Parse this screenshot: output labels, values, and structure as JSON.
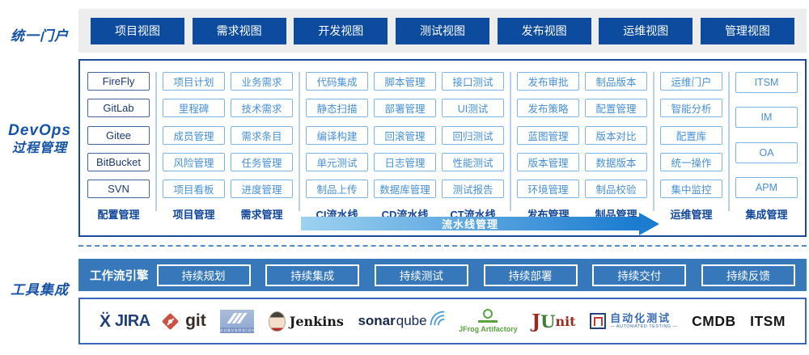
{
  "portal": {
    "label": "统一门户",
    "views": [
      "项目视图",
      "需求视图",
      "开发视图",
      "测试视图",
      "发布视图",
      "运维视图",
      "管理视图"
    ]
  },
  "process": {
    "label_line1": "DevOps",
    "label_line2": "过程管理",
    "pipeline_arrow_label": "流水线管理",
    "columns": [
      {
        "name": "配置管理",
        "style": "dark",
        "divider_after": true,
        "items": [
          "FireFly",
          "GitLab",
          "Gitee",
          "BitBucket",
          "SVN"
        ]
      },
      {
        "name": "项目管理",
        "style": "light",
        "divider_after": false,
        "items": [
          "项目计划",
          "里程碑",
          "成员管理",
          "风险管理",
          "项目看板"
        ]
      },
      {
        "name": "需求管理",
        "style": "light",
        "divider_after": true,
        "items": [
          "业务需求",
          "技术需求",
          "需求条目",
          "任务管理",
          "进度管理"
        ]
      },
      {
        "name": "CI流水线",
        "style": "light",
        "divider_after": false,
        "items": [
          "代码集成",
          "静态扫描",
          "编译构建",
          "单元测试",
          "制品上传"
        ]
      },
      {
        "name": "CD流水线",
        "style": "light",
        "divider_after": false,
        "items": [
          "脚本管理",
          "部署管理",
          "回滚管理",
          "日志管理",
          "数据库管理"
        ]
      },
      {
        "name": "CT流水线",
        "style": "light",
        "divider_after": true,
        "items": [
          "接口测试",
          "UI测试",
          "回归测试",
          "性能测试",
          "测试报告"
        ]
      },
      {
        "name": "发布管理",
        "style": "light",
        "divider_after": false,
        "items": [
          "发布审批",
          "发布策略",
          "蓝图管理",
          "版本管理",
          "环境管理"
        ]
      },
      {
        "name": "制品管理",
        "style": "light",
        "divider_after": true,
        "items": [
          "制品版本",
          "配置管理",
          "版本对比",
          "数据版本",
          "制品校验"
        ]
      },
      {
        "name": "运维管理",
        "style": "light",
        "divider_after": true,
        "items": [
          "运维门户",
          "智能分析",
          "配置库",
          "统一操作",
          "集中监控"
        ]
      },
      {
        "name": "集成管理",
        "style": "light",
        "divider_after": false,
        "items": [
          "ITSM",
          "IM",
          "OA",
          "APM"
        ]
      }
    ]
  },
  "tools": {
    "label": "工具集成",
    "workflow": {
      "engine_label": "工作流引擎",
      "stages": [
        "持续规划",
        "持续集成",
        "持续测试",
        "持续部署",
        "持续交付",
        "持续反馈"
      ]
    },
    "logo_texts": {
      "jira_mark": "Ẍ",
      "jira": "JIRA",
      "git": "git",
      "subversion": "SUBVERSION",
      "jenkins": "Jenkins",
      "sonar_bold": "sonar",
      "sonar_light": "qube",
      "jfrog": "JFrog Artifactory",
      "junit_j": "J",
      "junit_u": "U",
      "junit_nit": "nit",
      "autotest_cn": "自动化测试",
      "autotest_en": "— AUTOMATED TESTING —",
      "cmdb": "CMDB",
      "itsm": "ITSM"
    }
  },
  "colors": {
    "primary_dark_blue": "#0d4b9f",
    "label_blue": "#1553a6",
    "chip_light_blue": "#4690d8",
    "chip_dark_navy": "#1c3a6e",
    "workflow_bar_blue": "#3678ba",
    "arrow_gradient_start": "#9ed2f0",
    "arrow_gradient_end": "#1a7bd0",
    "dashed_separator_blue": "#4e8ed0"
  }
}
